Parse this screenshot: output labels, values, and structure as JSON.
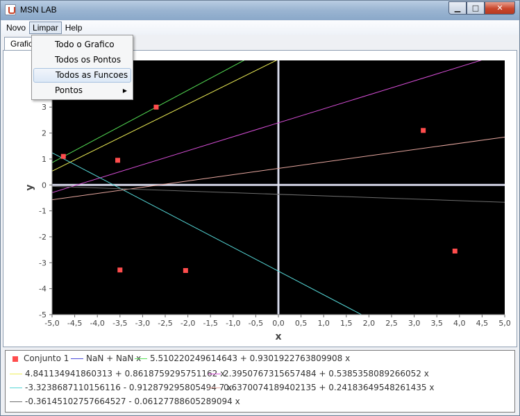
{
  "window": {
    "title": "MSN LAB",
    "buttons": {
      "minimize": "▁",
      "maximize": "□",
      "close": "✕"
    }
  },
  "menubar": {
    "items": [
      "Novo",
      "Limpar",
      "Help"
    ]
  },
  "dropdown": {
    "items": [
      {
        "label": "Todo o Grafico",
        "submenu": false
      },
      {
        "label": "Todos os Pontos",
        "submenu": false
      },
      {
        "label": "Todos as Funcoes",
        "submenu": false
      },
      {
        "label": "Pontos",
        "submenu": true
      }
    ],
    "submenu_arrow": "▶"
  },
  "tab": {
    "label": "Grafico"
  },
  "chart_data": {
    "type": "scatter",
    "xlabel": "x",
    "ylabel": "y",
    "xlim": [
      -5.0,
      5.0
    ],
    "ylim": [
      -5,
      4.8
    ],
    "xticks": [
      "-5,0",
      "-4,5",
      "-4,0",
      "-3,5",
      "-3,0",
      "-2,5",
      "-2,0",
      "-1,5",
      "-1,0",
      "-0,5",
      "0,0",
      "0,5",
      "1,0",
      "1,5",
      "2,0",
      "2,5",
      "3,0",
      "3,5",
      "4,0",
      "4,5",
      "5,0"
    ],
    "yticks": [
      -5,
      -4,
      -3,
      -2,
      -1,
      0,
      1,
      2,
      3
    ],
    "background": "#000000",
    "points": {
      "name": "Conjunto 1",
      "color": "#ff4d4d",
      "x": [
        -4.75,
        -3.55,
        -2.7,
        -3.5,
        -2.05,
        3.2,
        3.9
      ],
      "y": [
        1.1,
        0.95,
        3.0,
        -3.28,
        -3.3,
        2.1,
        -2.55
      ]
    },
    "lines": [
      {
        "name": "NaN + NaN x",
        "color": "#4b4bdc",
        "intercept": null,
        "slope": null
      },
      {
        "name": "5.510220249614643 + 0.9301922763809908 x",
        "color": "#55e055",
        "intercept": 5.510220249614643,
        "slope": 0.9301922763809908
      },
      {
        "name": "4.841134941860313 + 0.8618759295751162 x",
        "color": "#eeee55",
        "intercept": 4.841134941860313,
        "slope": 0.8618759295751162
      },
      {
        "name": "2.3950767315657484 + 0.5385358089266052 x",
        "color": "#d94fd9",
        "intercept": 2.3950767315657484,
        "slope": 0.5385358089266052
      },
      {
        "name": "-3.3238687110156116 - 0.912879295805494 7 x",
        "color": "#55d6d6",
        "intercept": -3.3238687110156118,
        "slope": -0.9128792958054947
      },
      {
        "name": "0.6370074189402135 + 0.24183649548261435 x",
        "color": "#e8a8a0",
        "intercept": 0.6370074189402135,
        "slope": 0.24183649548261435
      },
      {
        "name": "-0.36145102757664527 - 0.06127788605289094 x",
        "color": "#6e6e6e",
        "intercept": -0.36145102757664527,
        "slope": -0.06127788605289094
      }
    ],
    "legend_labels": [
      "Conjunto 1",
      "NaN + NaN x",
      "5.510220249614643 + 0.9301922763809908 x",
      "4.841134941860313 + 0.8618759295751162 x",
      "2.3950767315657484 + 0.5385358089266052 x",
      "-3.3238687110156116 - 0.912879295805494 7 x",
      "0.6370074189402135 + 0.24183649548261435 x",
      "-0.36145102757664527 - 0.06127788605289094 x"
    ]
  }
}
